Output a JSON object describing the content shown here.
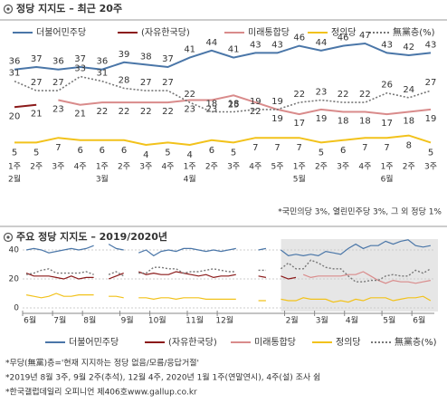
{
  "chart_data": [
    {
      "type": "line",
      "title": "정당 지지도 – 최근 20주",
      "categories": [
        "1주",
        "2주",
        "3주",
        "4주",
        "1주",
        "2주",
        "3주",
        "4주",
        "1주",
        "2주",
        "3주",
        "4주",
        "5주",
        "1주",
        "2주",
        "3주",
        "4주",
        "1주",
        "2주",
        "3주"
      ],
      "month_labels": [
        "2월",
        null,
        null,
        null,
        "3월",
        null,
        null,
        null,
        "4월",
        null,
        null,
        null,
        null,
        "5월",
        null,
        null,
        null,
        "6월",
        null,
        null
      ],
      "series": [
        {
          "name": "더불어민주당",
          "color": "#4a76a8",
          "values": [
            36,
            37,
            36,
            37,
            36,
            39,
            38,
            37,
            41,
            44,
            41,
            43,
            43,
            46,
            44,
            46,
            47,
            43,
            42,
            43
          ]
        },
        {
          "name": "(자유한국당)",
          "color": "#8b1a1a",
          "values": [
            20,
            21,
            null,
            null,
            null,
            null,
            null,
            null,
            null,
            null,
            null,
            null,
            null,
            null,
            null,
            null,
            null,
            null,
            null,
            null
          ]
        },
        {
          "name": "미래통합당",
          "color": "#d98b8b",
          "values": [
            null,
            null,
            23,
            21,
            22,
            22,
            22,
            22,
            23,
            23,
            25,
            22,
            19,
            17,
            19,
            18,
            18,
            17,
            18,
            19
          ]
        },
        {
          "name": "정의당",
          "color": "#f2c21b",
          "values": [
            5,
            5,
            7,
            6,
            6,
            6,
            4,
            5,
            4,
            6,
            5,
            7,
            7,
            7,
            5,
            6,
            7,
            7,
            8,
            5
          ]
        },
        {
          "name": "無黨층(%)",
          "color": "#777777",
          "dashed": true,
          "values": [
            31,
            27,
            27,
            33,
            31,
            28,
            27,
            27,
            22,
            18,
            18,
            19,
            19,
            22,
            23,
            22,
            22,
            26,
            24,
            27
          ]
        }
      ],
      "note": "*국민의당 3%, 열린민주당 3%, 그 외 정당 1%"
    },
    {
      "type": "line",
      "title": "주요 정당 지지도 – 2019/2020년",
      "categories": [
        "6월",
        null,
        null,
        null,
        "7월",
        null,
        null,
        null,
        "8월",
        null,
        null,
        null,
        null,
        "9월",
        null,
        null,
        null,
        "10월",
        null,
        null,
        null,
        null,
        "11월",
        null,
        null,
        null,
        "12월",
        null,
        null,
        null,
        null,
        null,
        null,
        null,
        null,
        "2월",
        null,
        null,
        null,
        "3월",
        null,
        null,
        null,
        "4월",
        null,
        null,
        null,
        null,
        "5월",
        null,
        null,
        null,
        "6월",
        null,
        null
      ],
      "ylim": [
        0,
        45
      ],
      "yticks": [
        0,
        20,
        40
      ],
      "grid": true,
      "series": [
        {
          "name": "더불어민주당",
          "color": "#4a76a8",
          "values": [
            40,
            41,
            40,
            38,
            39,
            40,
            41,
            40,
            41,
            43,
            null,
            44,
            41,
            40,
            null,
            38,
            40,
            36,
            39,
            40,
            39,
            41,
            41,
            40,
            39,
            40,
            39,
            40,
            41,
            null,
            null,
            40,
            41,
            null,
            40,
            36,
            37,
            36,
            37,
            36,
            39,
            38,
            37,
            41,
            44,
            41,
            43,
            43,
            46,
            44,
            46,
            47,
            43,
            42,
            43
          ]
        },
        {
          "name": "(자유한국당)",
          "color": "#8b1a1a",
          "values": [
            24,
            22,
            22,
            22,
            21,
            20,
            22,
            20,
            21,
            21,
            null,
            20,
            22,
            24,
            null,
            25,
            23,
            24,
            23,
            23,
            25,
            24,
            23,
            22,
            23,
            21,
            22,
            22,
            23,
            null,
            null,
            22,
            21,
            null,
            22,
            20,
            21,
            null,
            null,
            null,
            null,
            null,
            null,
            null,
            null,
            null,
            null,
            null,
            null,
            null,
            null,
            null,
            null,
            null,
            null
          ]
        },
        {
          "name": "미래통합당",
          "color": "#d98b8b",
          "values": [
            null,
            null,
            null,
            null,
            null,
            null,
            null,
            null,
            null,
            null,
            null,
            null,
            null,
            null,
            null,
            null,
            null,
            null,
            null,
            null,
            null,
            null,
            null,
            null,
            null,
            null,
            null,
            null,
            null,
            null,
            null,
            null,
            null,
            null,
            null,
            null,
            null,
            23,
            21,
            22,
            22,
            22,
            22,
            23,
            23,
            25,
            22,
            19,
            17,
            19,
            18,
            18,
            17,
            18,
            19
          ]
        },
        {
          "name": "정의당",
          "color": "#f2c21b",
          "values": [
            9,
            8,
            7,
            8,
            10,
            8,
            8,
            9,
            9,
            9,
            null,
            8,
            8,
            7,
            null,
            7,
            7,
            6,
            7,
            7,
            6,
            7,
            7,
            7,
            6,
            6,
            6,
            6,
            6,
            null,
            null,
            5,
            5,
            null,
            6,
            5,
            5,
            7,
            6,
            6,
            6,
            4,
            5,
            4,
            6,
            5,
            7,
            7,
            7,
            5,
            6,
            7,
            7,
            8,
            5
          ]
        },
        {
          "name": "無黨층(%)",
          "color": "#777777",
          "dashed": true,
          "values": [
            23,
            24,
            26,
            27,
            24,
            24,
            24,
            24,
            25,
            23,
            null,
            23,
            25,
            22,
            null,
            24,
            24,
            28,
            28,
            27,
            27,
            24,
            25,
            25,
            26,
            27,
            26,
            25,
            25,
            null,
            null,
            26,
            26,
            null,
            27,
            31,
            27,
            27,
            33,
            31,
            28,
            27,
            27,
            22,
            18,
            18,
            19,
            19,
            22,
            23,
            22,
            22,
            26,
            24,
            27
          ]
        }
      ],
      "notes": [
        "*무당(無黨)층='현재 지지하는 정당 없음/모름/응답거절'",
        "*2019년 8월 3주, 9월 2주(추석), 12월 4주, 2020년 1월 1주(연말연시), 4주(설) 조사 쉼",
        "*한국갤럽데일리 오피니언 제406호www.gallup.co.kr"
      ]
    }
  ]
}
